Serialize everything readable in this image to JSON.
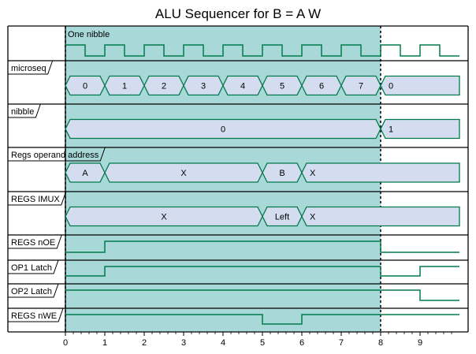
{
  "title": "ALU Sequencer for B = A   W",
  "colors": {
    "highlight": "#a8d8d8",
    "bus_fill": "#d4dcf0",
    "signal": "#007a4a",
    "frame": "#000000"
  },
  "clock_label": "One nibble",
  "time_axis": {
    "ticks": [
      "0",
      "1",
      "2",
      "3",
      "4",
      "5",
      "6",
      "7",
      "8",
      "9"
    ],
    "max": 10,
    "highlight_range": [
      0,
      8
    ]
  },
  "signals": [
    {
      "name": "",
      "type": "clock"
    },
    {
      "name": "microseq",
      "type": "bus",
      "segments": [
        {
          "start": 0,
          "end": 1,
          "label": "0"
        },
        {
          "start": 1,
          "end": 2,
          "label": "1"
        },
        {
          "start": 2,
          "end": 3,
          "label": "2"
        },
        {
          "start": 3,
          "end": 4,
          "label": "3"
        },
        {
          "start": 4,
          "end": 5,
          "label": "4"
        },
        {
          "start": 5,
          "end": 6,
          "label": "5"
        },
        {
          "start": 6,
          "end": 7,
          "label": "6"
        },
        {
          "start": 7,
          "end": 8,
          "label": "7"
        },
        {
          "start": 8,
          "end": 10,
          "label": "0"
        }
      ]
    },
    {
      "name": "nibble",
      "type": "bus",
      "segments": [
        {
          "start": 0,
          "end": 8,
          "label": "0"
        },
        {
          "start": 8,
          "end": 10,
          "label": "1"
        }
      ]
    },
    {
      "name": "Regs operand address",
      "type": "bus",
      "segments": [
        {
          "start": 0,
          "end": 1,
          "label": "A"
        },
        {
          "start": 1,
          "end": 5,
          "label": "X"
        },
        {
          "start": 5,
          "end": 6,
          "label": "B"
        },
        {
          "start": 6,
          "end": 10,
          "label": "X"
        }
      ]
    },
    {
      "name": "REGS IMUX",
      "type": "bus",
      "segments": [
        {
          "start": 0,
          "end": 5,
          "label": "X"
        },
        {
          "start": 5,
          "end": 6,
          "label": "Left"
        },
        {
          "start": 6,
          "end": 10,
          "label": "X"
        }
      ]
    },
    {
      "name": "REGS nOE",
      "type": "digital",
      "points": [
        [
          0,
          0
        ],
        [
          1,
          1
        ],
        [
          8,
          0
        ]
      ]
    },
    {
      "name": "OP1 Latch",
      "type": "digital",
      "points": [
        [
          0,
          0
        ],
        [
          1,
          1
        ],
        [
          8,
          0
        ],
        [
          9,
          1
        ]
      ]
    },
    {
      "name": "OP2 Latch",
      "type": "digital",
      "points": [
        [
          0,
          1
        ],
        [
          9,
          0
        ]
      ]
    },
    {
      "name": "REGS nWE",
      "type": "digital",
      "points": [
        [
          0,
          1
        ],
        [
          5,
          0
        ],
        [
          6,
          1
        ]
      ]
    }
  ]
}
